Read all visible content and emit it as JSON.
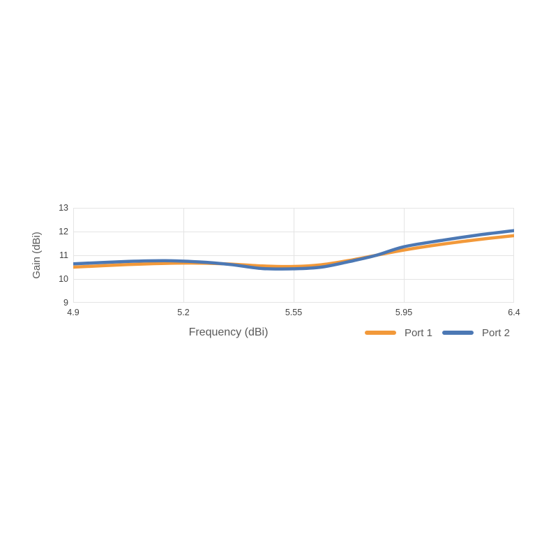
{
  "chart_data": {
    "type": "line",
    "title": "",
    "xlabel": "Frequency (dBi)",
    "ylabel": "Gain (dBi)",
    "x_tick_labels": [
      "4.9",
      "5.2",
      "5.55",
      "5.95",
      "6.4"
    ],
    "x_tick_values": [
      4.9,
      5.2,
      5.55,
      5.95,
      6.4
    ],
    "y_ticks": [
      "13",
      "12",
      "11",
      "10",
      "9"
    ],
    "y_tick_values": [
      13,
      12,
      11,
      10,
      9
    ],
    "ylim": [
      9,
      13
    ],
    "grid": true,
    "grid_color": "#E4E4E4",
    "legend_position": "bottom-right",
    "series": [
      {
        "name": "Port 1",
        "color": "#F2993A",
        "points": [
          [
            4.9,
            10.5
          ],
          [
            5.05,
            10.61
          ],
          [
            5.15,
            10.66
          ],
          [
            5.25,
            10.67
          ],
          [
            5.35,
            10.63
          ],
          [
            5.45,
            10.55
          ],
          [
            5.55,
            10.53
          ],
          [
            5.65,
            10.6
          ],
          [
            5.75,
            10.78
          ],
          [
            5.85,
            11.0
          ],
          [
            5.95,
            11.22
          ],
          [
            6.1,
            11.46
          ],
          [
            6.25,
            11.66
          ],
          [
            6.4,
            11.83
          ]
        ]
      },
      {
        "name": "Port 2",
        "color": "#4C78B4",
        "points": [
          [
            4.9,
            10.64
          ],
          [
            5.05,
            10.74
          ],
          [
            5.15,
            10.77
          ],
          [
            5.25,
            10.72
          ],
          [
            5.35,
            10.61
          ],
          [
            5.45,
            10.44
          ],
          [
            5.55,
            10.43
          ],
          [
            5.65,
            10.5
          ],
          [
            5.75,
            10.73
          ],
          [
            5.85,
            11.0
          ],
          [
            5.95,
            11.36
          ],
          [
            6.1,
            11.62
          ],
          [
            6.25,
            11.85
          ],
          [
            6.4,
            12.04
          ]
        ]
      }
    ]
  }
}
